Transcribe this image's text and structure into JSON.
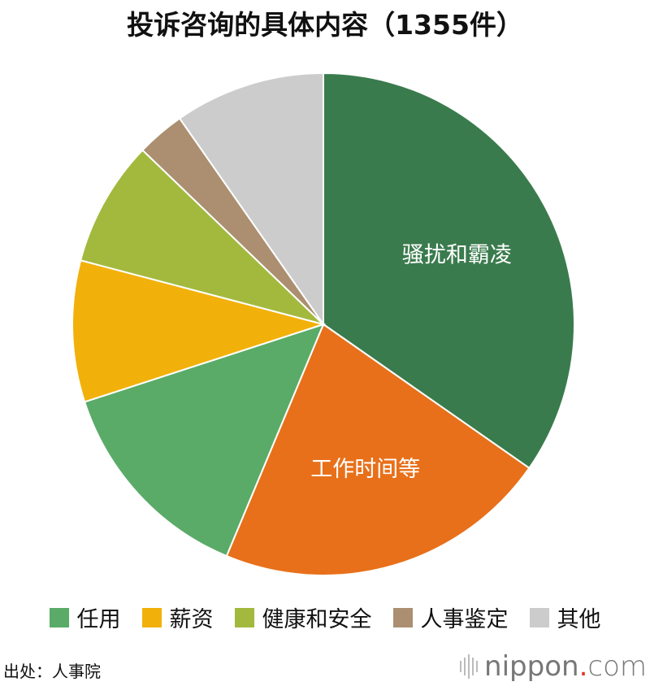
{
  "chart_data": {
    "type": "pie",
    "title": "投诉咨询的具体内容（1355件）",
    "start": "12 o'clock, clockwise",
    "slices": [
      {
        "label": "骚扰和霸凌",
        "value": 34.7,
        "color": "#3a7b4d",
        "labeled_on_chart": true
      },
      {
        "label": "工作时间等",
        "value": 21.6,
        "color": "#e8701a",
        "labeled_on_chart": true
      },
      {
        "label": "任用",
        "value": 13.7,
        "color": "#5aab68"
      },
      {
        "label": "薪资",
        "value": 9.1,
        "color": "#f2b10a"
      },
      {
        "label": "健康和安全",
        "value": 8.1,
        "color": "#a2b93e"
      },
      {
        "label": "人事鉴定",
        "value": 3.1,
        "color": "#ab8f70"
      },
      {
        "label": "其他",
        "value": 9.7,
        "color": "#cccccc"
      }
    ],
    "legend": {
      "placement": "bottom",
      "entries": [
        2,
        3,
        4,
        5,
        6
      ]
    }
  },
  "source": "出处：人事院",
  "logo": {
    "name": "nippon",
    "dot": ".",
    "suffix": "com"
  }
}
